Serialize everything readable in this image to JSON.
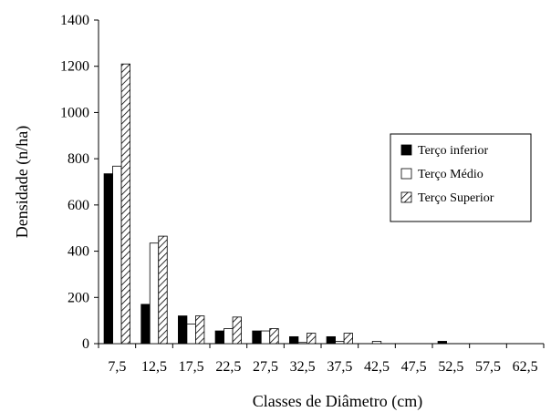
{
  "chart_data": {
    "type": "bar",
    "title": "",
    "xlabel": "Classes de Diâmetro (cm)",
    "ylabel": "Densidade (n/ha)",
    "ylim": [
      0,
      1400
    ],
    "yticks": [
      0,
      200,
      400,
      600,
      800,
      1000,
      1200,
      1400
    ],
    "grid": false,
    "legend_position": "right",
    "categories": [
      "7,5",
      "12,5",
      "17,5",
      "22,5",
      "27,5",
      "32,5",
      "37,5",
      "42,5",
      "47,5",
      "52,5",
      "57,5",
      "62,5"
    ],
    "series": [
      {
        "name": "Terço inferior",
        "style": "solid",
        "color": "#000000",
        "values": [
          735,
          170,
          120,
          55,
          55,
          30,
          30,
          0,
          0,
          10,
          0,
          0
        ]
      },
      {
        "name": "Terço Médio",
        "style": "open",
        "color": "#ffffff",
        "values": [
          768,
          435,
          85,
          65,
          55,
          5,
          10,
          10,
          0,
          0,
          0,
          0
        ]
      },
      {
        "name": "Terço Superior",
        "style": "hatched",
        "color": "#ffffff",
        "values": [
          1210,
          465,
          120,
          115,
          65,
          45,
          45,
          0,
          0,
          0,
          0,
          0
        ]
      }
    ]
  }
}
